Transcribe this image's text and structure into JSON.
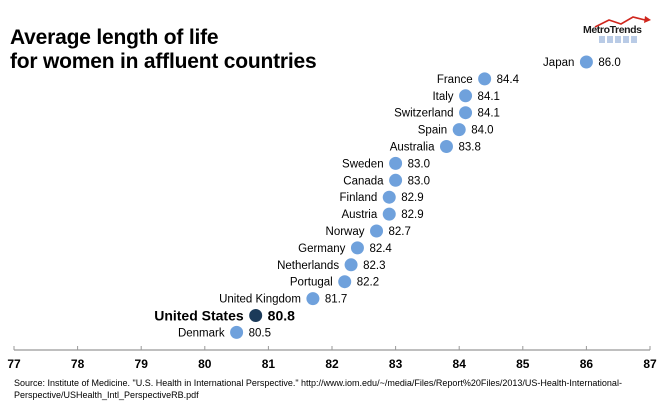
{
  "title_lines": [
    "Average length of life",
    "for women in affluent countries"
  ],
  "logo": {
    "text": "MetroTrends"
  },
  "source": "Source: Institute of Medicine. \"U.S. Health in International Perspective.\" http://www.iom.edu/~/media/Files/Report%20Files/2013/US-Health-International-Perspective/USHealth_Intl_PerspectiveRB.pdf",
  "colors": {
    "dot": "#6fa1dc",
    "highlight": "#1b3a59",
    "axis": "#999999",
    "text": "#000000"
  },
  "chart_data": {
    "type": "scatter",
    "title": "Average length of life for women in affluent countries",
    "xlabel": "",
    "ylabel": "",
    "xlim": [
      77,
      87
    ],
    "x_ticks": [
      77,
      78,
      79,
      80,
      81,
      82,
      83,
      84,
      85,
      86,
      87
    ],
    "grid": false,
    "legend": "none",
    "points": [
      {
        "country": "Japan",
        "value": 86.0,
        "label": "86.0"
      },
      {
        "country": "France",
        "value": 84.4,
        "label": "84.4"
      },
      {
        "country": "Italy",
        "value": 84.1,
        "label": "84.1"
      },
      {
        "country": "Switzerland",
        "value": 84.1,
        "label": "84.1"
      },
      {
        "country": "Spain",
        "value": 84.0,
        "label": "84.0"
      },
      {
        "country": "Australia",
        "value": 83.8,
        "label": "83.8"
      },
      {
        "country": "Sweden",
        "value": 83.0,
        "label": "83.0"
      },
      {
        "country": "Canada",
        "value": 83.0,
        "label": "83.0"
      },
      {
        "country": "Finland",
        "value": 82.9,
        "label": "82.9"
      },
      {
        "country": "Austria",
        "value": 82.9,
        "label": "82.9"
      },
      {
        "country": "Norway",
        "value": 82.7,
        "label": "82.7"
      },
      {
        "country": "Germany",
        "value": 82.4,
        "label": "82.4"
      },
      {
        "country": "Netherlands",
        "value": 82.3,
        "label": "82.3"
      },
      {
        "country": "Portugal",
        "value": 82.2,
        "label": "82.2"
      },
      {
        "country": "United Kingdom",
        "value": 81.7,
        "label": "81.7"
      },
      {
        "country": "United States",
        "value": 80.8,
        "label": "80.8",
        "highlight": true
      },
      {
        "country": "Denmark",
        "value": 80.5,
        "label": "80.5"
      }
    ]
  }
}
